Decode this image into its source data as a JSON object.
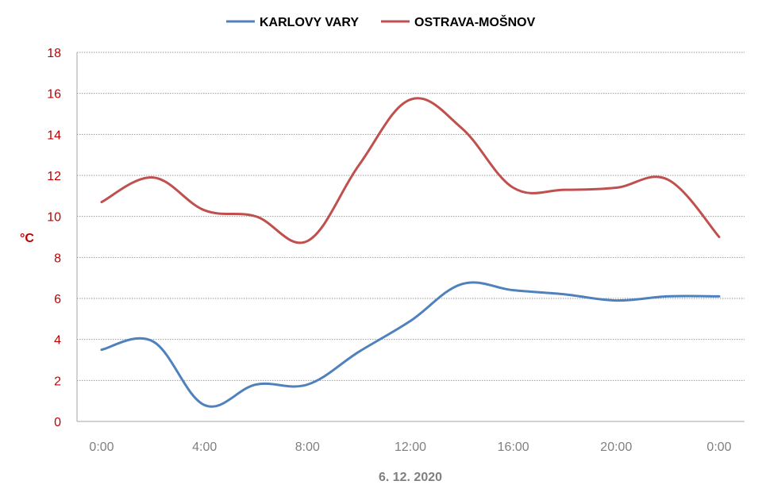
{
  "chart_data": {
    "type": "line",
    "title": "",
    "xlabel": "6. 12. 2020",
    "ylabel": "°C",
    "x_tick_labels": [
      "0:00",
      "4:00",
      "8:00",
      "12:00",
      "16:00",
      "20:00",
      "0:00"
    ],
    "y_ticks": [
      0,
      2,
      4,
      6,
      8,
      10,
      12,
      14,
      16,
      18
    ],
    "ylim": [
      0,
      18
    ],
    "xlim_hours": [
      0,
      24
    ],
    "grid": "horizontal dotted",
    "legend_position": "top-center",
    "series": [
      {
        "name": "KARLOVY VARY",
        "color": "#4f81bd",
        "x_hours": [
          0,
          2,
          4,
          6,
          8,
          10,
          12,
          14,
          16,
          18,
          20,
          22,
          24
        ],
        "values": [
          3.5,
          3.9,
          0.8,
          1.8,
          1.8,
          3.4,
          4.9,
          6.7,
          6.4,
          6.2,
          5.9,
          6.1,
          6.1
        ]
      },
      {
        "name": "OSTRAVA-MOŠNOV",
        "color": "#c0504d",
        "x_hours": [
          0,
          2,
          4,
          6,
          8,
          10,
          12,
          14,
          16,
          18,
          20,
          22,
          24
        ],
        "values": [
          10.7,
          11.9,
          10.3,
          10.0,
          8.8,
          12.5,
          15.7,
          14.3,
          11.4,
          11.3,
          11.4,
          11.8,
          9.0
        ]
      }
    ]
  }
}
